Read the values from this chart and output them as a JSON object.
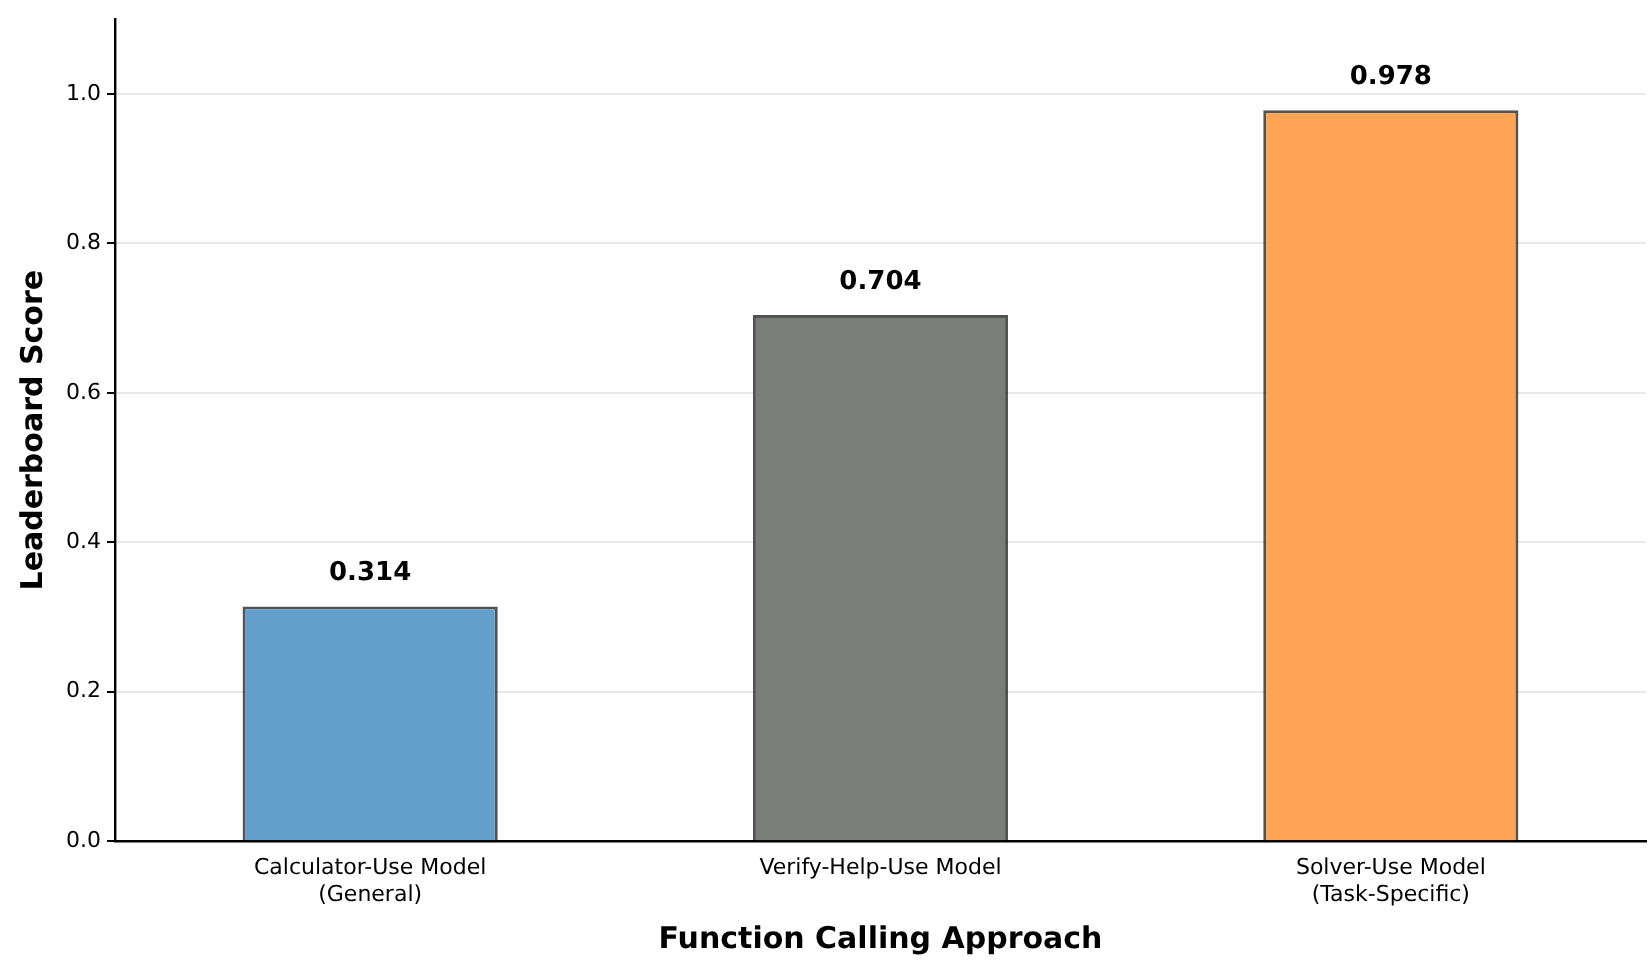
{
  "chart_data": {
    "type": "bar",
    "xlabel": "Function Calling Approach",
    "ylabel": "Leaderboard Score",
    "categories": [
      "Calculator-Use Model\n(General)",
      "Verify-Help-Use Model",
      "Solver-Use Model\n(Task-Specific)"
    ],
    "values": [
      0.314,
      0.704,
      0.978
    ],
    "colors": [
      "#62a0cb",
      "#7a7e78",
      "#ffa354"
    ],
    "ylim": [
      0,
      1.1
    ],
    "yticks": [
      {
        "value": 0,
        "label": "0.0"
      },
      {
        "value": 0.2,
        "label": "0.2"
      },
      {
        "value": 0.4,
        "label": "0.4"
      },
      {
        "value": 0.6,
        "label": "0.6"
      },
      {
        "value": 0.8,
        "label": "0.8"
      },
      {
        "value": 1,
        "label": "1.0"
      }
    ],
    "grid": "y",
    "data_labels": true
  }
}
